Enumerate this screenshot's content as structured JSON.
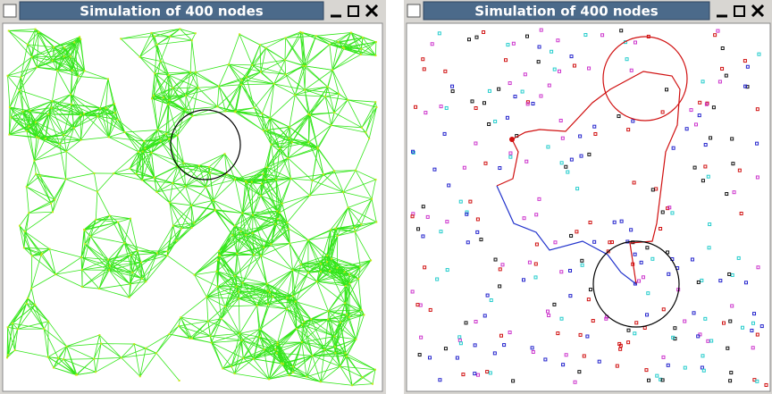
{
  "windows": [
    {
      "title": "Simulation of 400 nodes"
    },
    {
      "title": "Simulation of 400 nodes"
    }
  ]
}
